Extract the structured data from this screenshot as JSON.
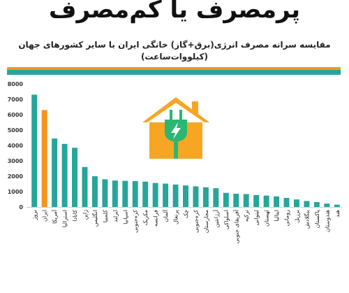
{
  "header": {
    "headline": "پرمصرف یا کم‌مصرف",
    "subtitle_line1": "مقایسه سرانه مصرف انرژی(برق+گاز) خانگی ایران با سایر کشورهای جهان",
    "subtitle_line2": "(کیلووات‌ساعت)"
  },
  "colors": {
    "accent_orange": "#f7941d",
    "bar_green": "#26a69a",
    "house_orange": "#f6a623",
    "house_green": "#2bb673"
  },
  "icon": "house-plug-icon",
  "chart_data": {
    "type": "bar",
    "title": "",
    "xlabel": "",
    "ylabel": "",
    "ylim": [
      0,
      8000
    ],
    "yticks": [
      0,
      1000,
      2000,
      3000,
      4000,
      5000,
      6000,
      7000,
      8000
    ],
    "grid": false,
    "legend": "none",
    "highlight_category": "ایران",
    "categories": [
      "نروژ",
      "ایران",
      "آمریکا",
      "استرالیا",
      "کانادا",
      "ژاپن",
      "انگلیس",
      "کلمبیا",
      "ایرلند",
      "اسپانیا",
      "کره‌جنوبی",
      "مکزیک",
      "فرانسه",
      "آلمان",
      "پرتغال",
      "چک",
      "کره‌جنوبی",
      "مجارستان",
      "آرژانتین",
      "اسلواکی",
      "آفریقای جنوبی",
      "ترکیه",
      "لیتوانی",
      "لهستان",
      "ایتالیا",
      "رومانی",
      "برزیل",
      "بنگلادش",
      "پاکستان",
      "هندوستان",
      "هند"
    ],
    "values": [
      7300,
      6300,
      4450,
      4100,
      3850,
      2600,
      2000,
      1800,
      1720,
      1700,
      1680,
      1650,
      1560,
      1520,
      1460,
      1400,
      1340,
      1280,
      1220,
      920,
      860,
      840,
      780,
      740,
      690,
      590,
      490,
      390,
      320,
      220,
      150
    ]
  }
}
